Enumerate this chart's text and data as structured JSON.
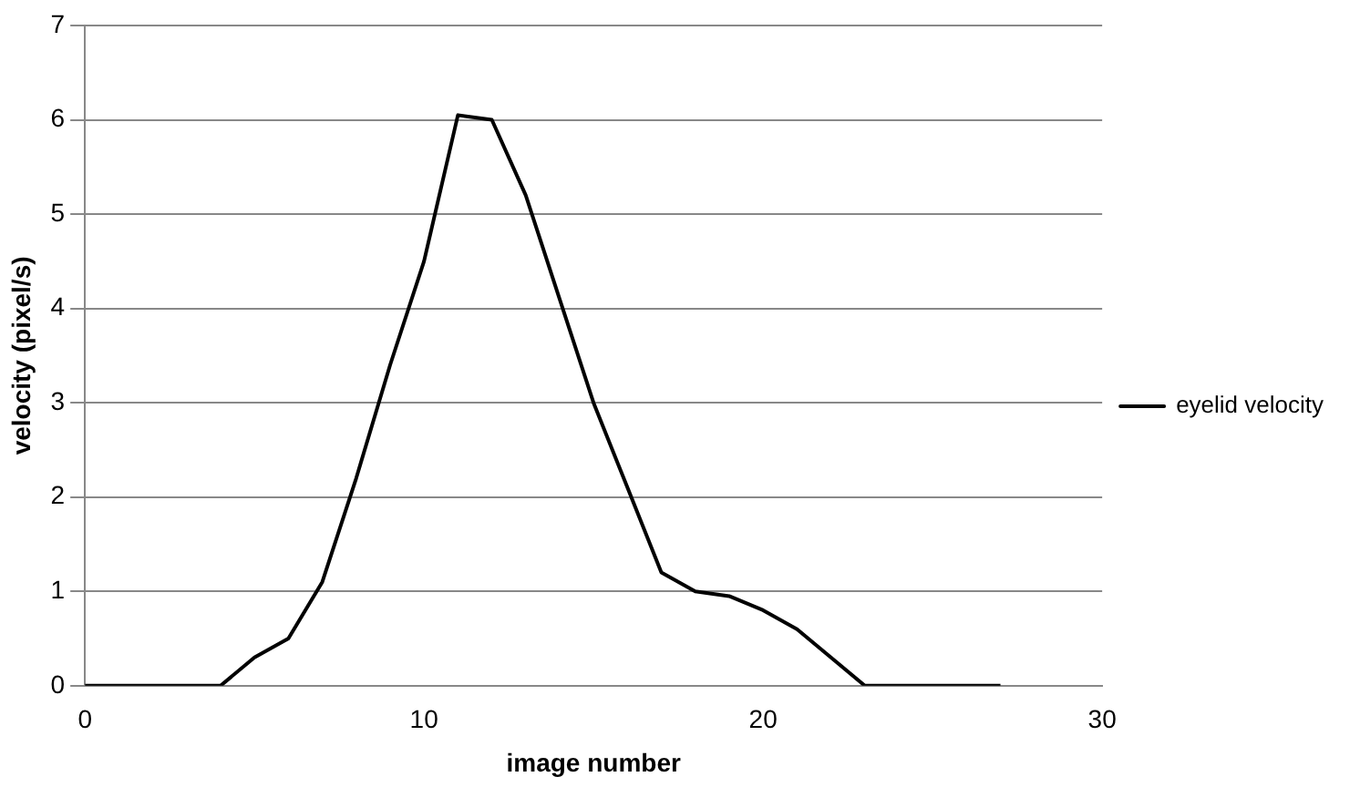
{
  "chart_data": {
    "type": "line",
    "xlabel": "image number",
    "ylabel": "velocity (pixel/s)",
    "x": [
      0,
      1,
      2,
      3,
      4,
      5,
      6,
      7,
      8,
      9,
      10,
      11,
      12,
      13,
      14,
      15,
      16,
      17,
      18,
      19,
      20,
      21,
      22,
      23,
      24,
      25,
      26,
      27
    ],
    "series": [
      {
        "name": "eyelid velocity",
        "color": "#000000",
        "values": [
          0,
          0,
          0,
          0,
          0,
          0.3,
          0.5,
          1.1,
          2.2,
          3.4,
          4.5,
          6.05,
          6,
          5.2,
          4.1,
          3,
          2.1,
          1.2,
          1,
          0.95,
          0.8,
          0.6,
          0.3,
          0,
          0,
          0,
          0,
          0
        ]
      }
    ],
    "xlim": [
      0,
      30
    ],
    "xticks": [
      0,
      10,
      20,
      30
    ],
    "ylim": [
      0,
      7
    ],
    "yticks": [
      0,
      1,
      2,
      3,
      4,
      5,
      6,
      7
    ],
    "grid": "y",
    "legend": "right",
    "marker": "none",
    "line_style": "solid"
  }
}
